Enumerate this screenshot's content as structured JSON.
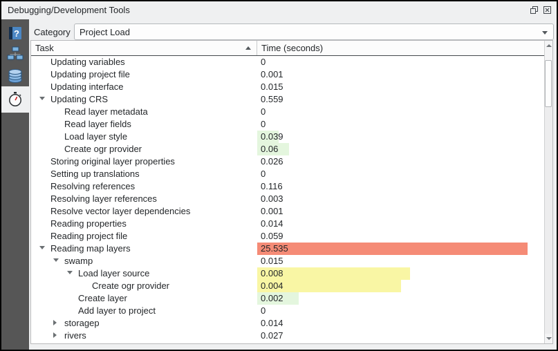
{
  "window": {
    "title": "Debugging/Development Tools"
  },
  "category": {
    "label": "Category",
    "value": "Project Load"
  },
  "sidebar": {
    "items": [
      {
        "icon": "help-book-icon",
        "active": false
      },
      {
        "icon": "network-logger-icon",
        "active": false
      },
      {
        "icon": "database-query-icon",
        "active": false
      },
      {
        "icon": "stopwatch-profiler-icon",
        "active": true
      }
    ]
  },
  "colors": {
    "red": "#f58b76",
    "yellow": "#f9f6a4",
    "green": "#e4f6de",
    "sidebar_bg": "#565656",
    "chrome_bg": "#eff0f1"
  },
  "table": {
    "columns": [
      {
        "label": "Task",
        "sort": "asc"
      },
      {
        "label": "Time (seconds)"
      }
    ],
    "rows": [
      {
        "task": "Updating variables",
        "time": "0",
        "level": 1
      },
      {
        "task": "Updating project file",
        "time": "0.001",
        "level": 1
      },
      {
        "task": "Updating interface",
        "time": "0.015",
        "level": 1
      },
      {
        "task": "Updating CRS",
        "time": "0.559",
        "level": 1,
        "arrow": "expanded"
      },
      {
        "task": "Read layer metadata",
        "time": "0",
        "level": 2
      },
      {
        "task": "Read layer fields",
        "time": "0",
        "level": 2
      },
      {
        "task": "Load layer style",
        "time": "0.039",
        "level": 2,
        "bar": {
          "frac": 0.079,
          "color": "green"
        }
      },
      {
        "task": "Create ogr provider",
        "time": "0.06",
        "level": 2,
        "bar": {
          "frac": 0.117,
          "color": "green"
        }
      },
      {
        "task": "Storing original layer properties",
        "time": "0.026",
        "level": 1
      },
      {
        "task": "Setting up translations",
        "time": "0",
        "level": 1
      },
      {
        "task": "Resolving references",
        "time": "0.116",
        "level": 1
      },
      {
        "task": "Resolving layer references",
        "time": "0.003",
        "level": 1
      },
      {
        "task": "Resolve vector layer dependencies",
        "time": "0.001",
        "level": 1
      },
      {
        "task": "Reading properties",
        "time": "0.014",
        "level": 1
      },
      {
        "task": "Reading project file",
        "time": "0.059",
        "level": 1
      },
      {
        "task": "Reading map layers",
        "time": "25.535",
        "level": 1,
        "arrow": "expanded",
        "bar": {
          "frac": 1.0,
          "color": "red"
        }
      },
      {
        "task": "swamp",
        "time": "0.015",
        "level": 2,
        "arrow": "expanded"
      },
      {
        "task": "Load layer source",
        "time": "0.008",
        "level": 3,
        "arrow": "expanded",
        "bar": {
          "frac": 0.565,
          "color": "yellow"
        }
      },
      {
        "task": "Create ogr provider",
        "time": "0.004",
        "level": 4,
        "bar": {
          "frac": 0.532,
          "color": "yellow"
        }
      },
      {
        "task": "Create layer",
        "time": "0.002",
        "level": 3,
        "bar": {
          "frac": 0.153,
          "color": "green"
        }
      },
      {
        "task": "Add layer to project",
        "time": "0",
        "level": 3
      },
      {
        "task": "storagep",
        "time": "0.014",
        "level": 2,
        "arrow": "collapsed"
      },
      {
        "task": "rivers",
        "time": "0.027",
        "level": 2,
        "arrow": "collapsed"
      }
    ]
  }
}
